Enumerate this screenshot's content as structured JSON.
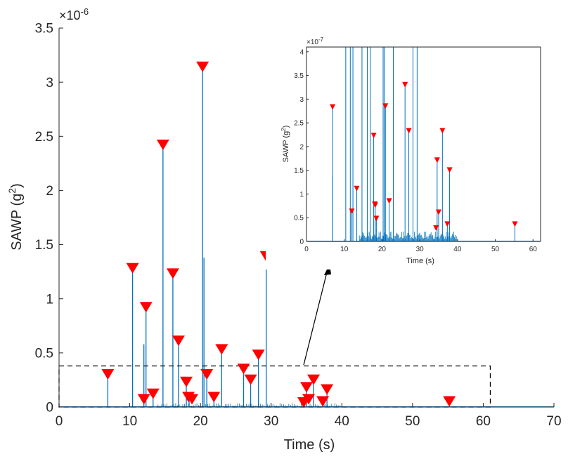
{
  "colors": {
    "line": "#0072BD",
    "marker": "#FF0000",
    "axis": "#262626",
    "dash": "#000000"
  },
  "chart_data": [
    {
      "type": "line",
      "role": "main",
      "xlabel": "Time (s)",
      "ylabel_base": "SAWP (g",
      "ylabel_sup": "2",
      "ylabel_tail": ")",
      "exponent_prefix": "×10",
      "exponent_power": "-6",
      "xlim": [
        0,
        70
      ],
      "ylim": [
        0,
        3.5
      ],
      "xticks": [
        0,
        10,
        20,
        30,
        40,
        50,
        60,
        70
      ],
      "xtick_labels": [
        "0",
        "10",
        "20",
        "30",
        "40",
        "50",
        "60",
        "70"
      ],
      "yticks": [
        0,
        0.5,
        1,
        1.5,
        2,
        2.5,
        3,
        3.5
      ],
      "ytick_labels": [
        "0",
        "0.5",
        "1",
        "1.5",
        "2",
        "2.5",
        "3",
        "3.5"
      ],
      "spikes": [
        {
          "t": 6.9,
          "v": 0.28
        },
        {
          "t": 10.4,
          "v": 1.26
        },
        {
          "t": 12.0,
          "v": 0.58
        },
        {
          "t": 12.3,
          "v": 0.9
        },
        {
          "t": 13.3,
          "v": 0.1
        },
        {
          "t": 14.7,
          "v": 2.4
        },
        {
          "t": 16.1,
          "v": 1.21
        },
        {
          "t": 16.9,
          "v": 0.59
        },
        {
          "t": 18.0,
          "v": 0.21
        },
        {
          "t": 18.4,
          "v": 0.07
        },
        {
          "t": 20.3,
          "v": 3.12
        },
        {
          "t": 20.5,
          "v": 1.38
        },
        {
          "t": 20.9,
          "v": 0.28
        },
        {
          "t": 21.9,
          "v": 0.07
        },
        {
          "t": 23.0,
          "v": 0.51
        },
        {
          "t": 26.1,
          "v": 0.33
        },
        {
          "t": 27.1,
          "v": 0.23
        },
        {
          "t": 28.2,
          "v": 0.46
        },
        {
          "t": 29.3,
          "v": 1.37
        },
        {
          "t": 35.0,
          "v": 0.16
        },
        {
          "t": 36.0,
          "v": 0.23
        },
        {
          "t": 37.9,
          "v": 0.14
        }
      ],
      "markers": [
        {
          "t": 6.9,
          "v": 0.28
        },
        {
          "t": 10.4,
          "v": 1.26
        },
        {
          "t": 12.0,
          "v": 0.05
        },
        {
          "t": 12.3,
          "v": 0.9
        },
        {
          "t": 13.3,
          "v": 0.1
        },
        {
          "t": 14.7,
          "v": 2.4
        },
        {
          "t": 16.1,
          "v": 1.21
        },
        {
          "t": 16.9,
          "v": 0.59
        },
        {
          "t": 18.0,
          "v": 0.21
        },
        {
          "t": 18.3,
          "v": 0.07
        },
        {
          "t": 18.8,
          "v": 0.05
        },
        {
          "t": 20.3,
          "v": 3.12
        },
        {
          "t": 20.9,
          "v": 0.28
        },
        {
          "t": 21.9,
          "v": 0.07
        },
        {
          "t": 23.0,
          "v": 0.51
        },
        {
          "t": 26.1,
          "v": 0.33
        },
        {
          "t": 27.1,
          "v": 0.23
        },
        {
          "t": 28.2,
          "v": 0.46
        },
        {
          "t": 29.3,
          "v": 1.37
        },
        {
          "t": 34.6,
          "v": 0.02
        },
        {
          "t": 35.0,
          "v": 0.16
        },
        {
          "t": 35.3,
          "v": 0.05
        },
        {
          "t": 36.0,
          "v": 0.23
        },
        {
          "t": 37.3,
          "v": 0.03
        },
        {
          "t": 37.9,
          "v": 0.14
        },
        {
          "t": 55.2,
          "v": 0.03
        }
      ],
      "zoom_box": {
        "t0": 0,
        "t1": 61,
        "v0": 0,
        "v1": 0.38
      }
    },
    {
      "type": "line",
      "role": "inset",
      "xlabel": "Time (s)",
      "ylabel_base": "SAWP (g",
      "ylabel_sup": "2",
      "ylabel_tail": ")",
      "exponent_prefix": "×10",
      "exponent_power": "-7",
      "xlim": [
        0,
        62
      ],
      "ylim": [
        0,
        4.1
      ],
      "xticks": [
        0,
        10,
        20,
        30,
        40,
        50,
        60
      ],
      "xtick_labels": [
        "0",
        "10",
        "20",
        "30",
        "40",
        "50",
        "60"
      ],
      "yticks": [
        0,
        0.5,
        1,
        1.5,
        2,
        2.5,
        3,
        3.5,
        4
      ],
      "ytick_labels": [
        "0",
        "0.5",
        "1",
        "1.5",
        "2",
        "2.5",
        "3",
        "3.5",
        "4"
      ],
      "spikes": [
        {
          "t": 6.9,
          "v": 2.8
        },
        {
          "t": 6.9,
          "v": 1.4
        },
        {
          "t": 10.4,
          "v": 4.1
        },
        {
          "t": 11.6,
          "v": 4.1
        },
        {
          "t": 12.0,
          "v": 0.6
        },
        {
          "t": 12.3,
          "v": 4.1
        },
        {
          "t": 13.3,
          "v": 1.08
        },
        {
          "t": 14.7,
          "v": 4.1
        },
        {
          "t": 16.1,
          "v": 4.1
        },
        {
          "t": 16.9,
          "v": 4.1
        },
        {
          "t": 17.8,
          "v": 2.2
        },
        {
          "t": 18.2,
          "v": 0.73
        },
        {
          "t": 18.5,
          "v": 0.45
        },
        {
          "t": 20.3,
          "v": 4.1
        },
        {
          "t": 20.6,
          "v": 4.1
        },
        {
          "t": 20.9,
          "v": 2.82
        },
        {
          "t": 21.9,
          "v": 0.82
        },
        {
          "t": 23.0,
          "v": 4.1
        },
        {
          "t": 26.1,
          "v": 3.27
        },
        {
          "t": 27.1,
          "v": 2.3
        },
        {
          "t": 28.2,
          "v": 4.1
        },
        {
          "t": 29.3,
          "v": 4.1
        },
        {
          "t": 34.6,
          "v": 1.68
        },
        {
          "t": 35.0,
          "v": 0.58
        },
        {
          "t": 36.0,
          "v": 2.3
        },
        {
          "t": 37.3,
          "v": 0.33
        },
        {
          "t": 37.9,
          "v": 1.47
        },
        {
          "t": 55.2,
          "v": 0.33
        }
      ],
      "markers": [
        {
          "t": 6.9,
          "v": 2.8
        },
        {
          "t": 12.0,
          "v": 0.6
        },
        {
          "t": 13.3,
          "v": 1.08
        },
        {
          "t": 17.8,
          "v": 2.2
        },
        {
          "t": 18.2,
          "v": 0.73
        },
        {
          "t": 18.5,
          "v": 0.45
        },
        {
          "t": 18.1,
          "v": 0.75
        },
        {
          "t": 20.9,
          "v": 2.82
        },
        {
          "t": 21.9,
          "v": 0.82
        },
        {
          "t": 26.1,
          "v": 3.27
        },
        {
          "t": 27.1,
          "v": 2.3
        },
        {
          "t": 34.6,
          "v": 1.68
        },
        {
          "t": 34.3,
          "v": 0.25
        },
        {
          "t": 35.0,
          "v": 0.58
        },
        {
          "t": 36.0,
          "v": 2.3
        },
        {
          "t": 37.3,
          "v": 0.33
        },
        {
          "t": 37.9,
          "v": 1.47
        },
        {
          "t": 55.2,
          "v": 0.33
        }
      ]
    }
  ]
}
